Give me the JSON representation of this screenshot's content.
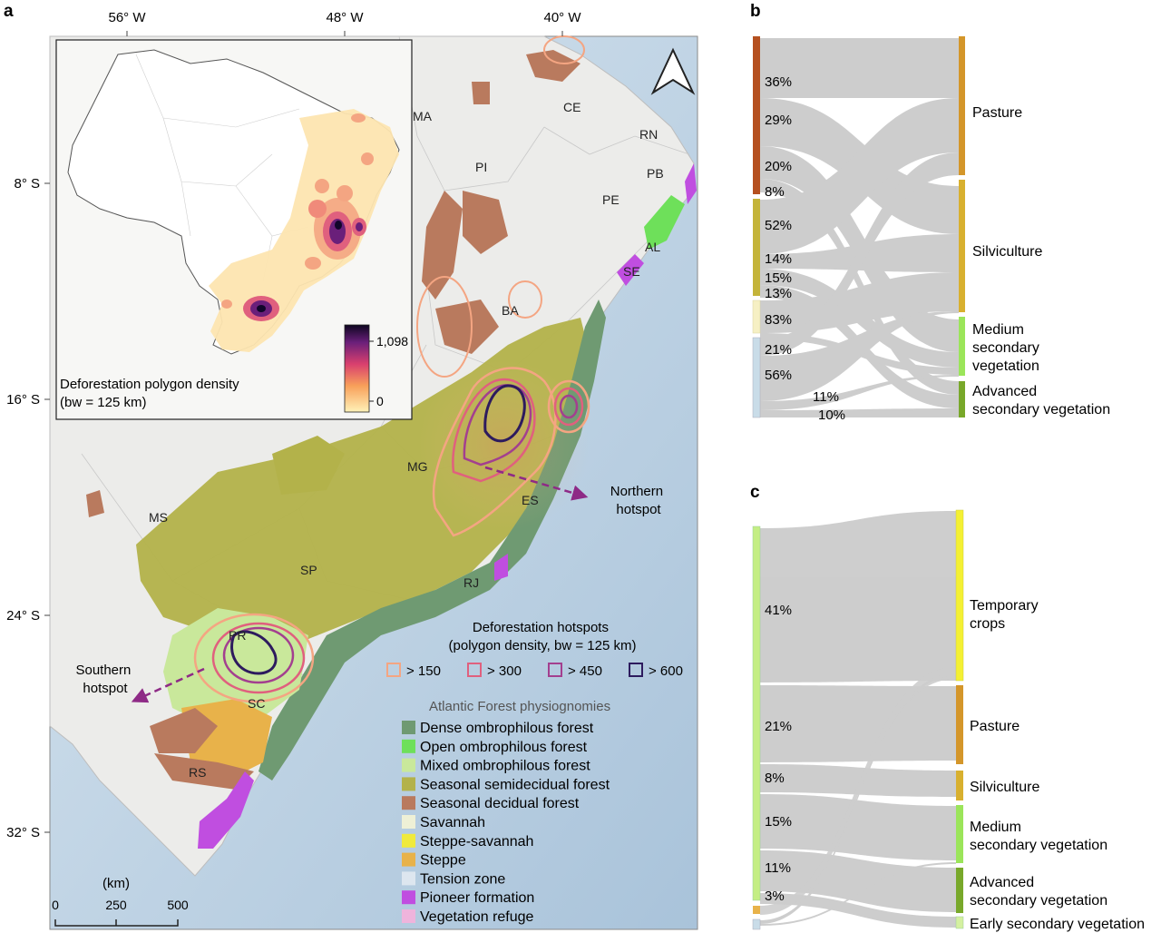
{
  "panel_a": {
    "letter": "a",
    "longitude_ticks": [
      "56° W",
      "48° W",
      "40° W"
    ],
    "latitude_ticks": [
      "8° S",
      "16° S",
      "24° S",
      "32° S"
    ],
    "states": {
      "MA": "MA",
      "CE": "CE",
      "RN": "RN",
      "PI": "PI",
      "PB": "PB",
      "PE": "PE",
      "AL": "AL",
      "SE": "SE",
      "BA": "BA",
      "MG": "MG",
      "ES": "ES",
      "MS": "MS",
      "SP": "SP",
      "RJ": "RJ",
      "PR": "PR",
      "SC": "SC",
      "RS": "RS"
    },
    "northern_hotspot": [
      "Northern",
      "hotspot"
    ],
    "southern_hotspot": [
      "Southern",
      "hotspot"
    ],
    "inset": {
      "title_line1": "Deforestation polygon density",
      "title_line2": "(bw = 125 km)",
      "scale_max": "1,098",
      "scale_min": "0"
    },
    "hotspots_legend": {
      "title_line1": "Deforestation hotspots",
      "title_line2": "(polygon density, bw = 125 km)",
      "items": [
        {
          "label": "> 150",
          "color": "#f4a582"
        },
        {
          "label": "> 300",
          "color": "#e0607e"
        },
        {
          "label": "> 450",
          "color": "#a33f8f"
        },
        {
          "label": "> 600",
          "color": "#2d1b5e"
        }
      ]
    },
    "physiognomy_legend": {
      "title": "Atlantic Forest physiognomies",
      "items": [
        {
          "label": "Dense ombrophilous forest",
          "color": "#6f9a72"
        },
        {
          "label": "Open ombrophilous forest",
          "color": "#6ee05a"
        },
        {
          "label": "Mixed ombrophilous forest",
          "color": "#c9e89b"
        },
        {
          "label": "Seasonal semidecidual forest",
          "color": "#b3b24a"
        },
        {
          "label": "Seasonal decidual forest",
          "color": "#b97a5e"
        },
        {
          "label": "Savannah",
          "color": "#eef0d6"
        },
        {
          "label": "Steppe-savannah",
          "color": "#f0ea3c"
        },
        {
          "label": "Steppe",
          "color": "#e8b24a"
        },
        {
          "label": "Tension zone",
          "color": "#dde6ef"
        },
        {
          "label": "Pioneer formation",
          "color": "#c04ee0"
        },
        {
          "label": "Vegetation refuge",
          "color": "#efb4dc"
        }
      ]
    },
    "scale_bar": {
      "unit": "(km)",
      "ticks": [
        "0",
        "250",
        "500"
      ]
    }
  },
  "panel_b": {
    "letter": "b",
    "source_percents": [
      "36%",
      "29%",
      "20%",
      "8%",
      "52%",
      "14%",
      "15%",
      "13%",
      "83%",
      "21%",
      "56%",
      "11%",
      "10%"
    ],
    "source_colors": [
      "#b5501f",
      "#c4b43a",
      "#f6f0c4",
      "#c9dce8"
    ],
    "targets": [
      {
        "lines": [
          "Pasture"
        ],
        "color": "#d4962a"
      },
      {
        "lines": [
          "Silviculture"
        ],
        "color": "#d8b02f"
      },
      {
        "lines": [
          "Medium",
          "secondary",
          "vegetation"
        ],
        "color": "#9be55a"
      },
      {
        "lines": [
          "Advanced",
          "secondary vegetation"
        ],
        "color": "#78a82a"
      }
    ]
  },
  "panel_c": {
    "letter": "c",
    "source_percents": [
      "41%",
      "21%",
      "8%",
      "15%",
      "11%",
      "3%"
    ],
    "source_colors": [
      "#c4ee84",
      "#e8b24a",
      "#c9dce8"
    ],
    "targets": [
      {
        "lines": [
          "Temporary",
          "crops"
        ],
        "color": "#f4f033"
      },
      {
        "lines": [
          "Pasture"
        ],
        "color": "#d4962a"
      },
      {
        "lines": [
          "Silviculture"
        ],
        "color": "#d8b02f"
      },
      {
        "lines": [
          "Medium",
          "secondary vegetation"
        ],
        "color": "#9be55a"
      },
      {
        "lines": [
          "Advanced",
          "secondary vegetation"
        ],
        "color": "#78a82a"
      },
      {
        "lines": [
          "Early secondary vegetation"
        ],
        "color": "#d4f0a0"
      }
    ]
  }
}
